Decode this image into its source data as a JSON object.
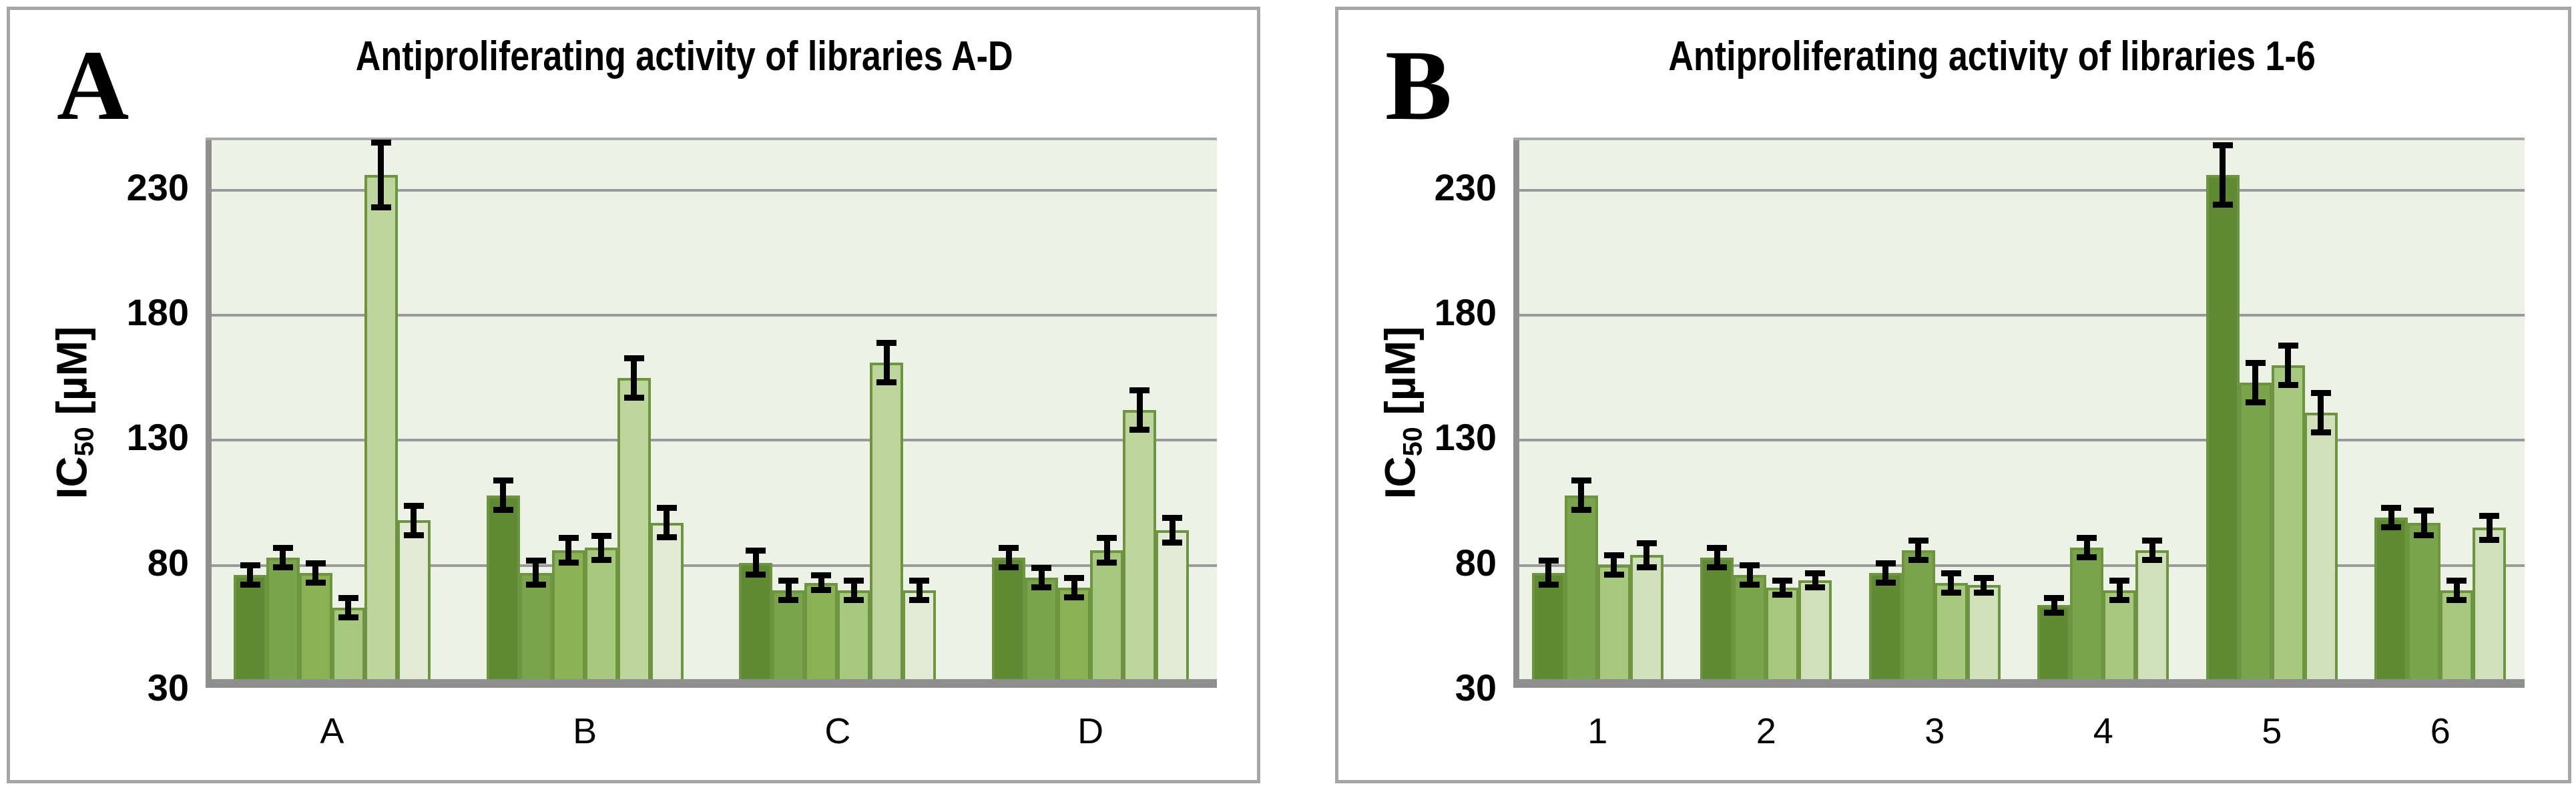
{
  "style": {
    "figure_bg": "#ffffff",
    "panel_bg": "#ffffff",
    "frame_color": "#a6a6a6",
    "plot_bg": "#edf2e6",
    "grid_color": "#9a9a9a",
    "axis_color": "#8f8f8f",
    "error_color": "#000000",
    "bar_border_color": "#6f9441",
    "text_color": "#000000"
  },
  "chart_data": [
    {
      "type": "bar",
      "panel_label": "A",
      "title": "Antiproliferating activity of libraries A-D",
      "ylabel_prefix": "IC",
      "ylabel_sub": "50",
      "ylabel_suffix": " [µM]",
      "ylim": [
        30,
        250
      ],
      "yticks": [
        230,
        180,
        130,
        80,
        30
      ],
      "grid": true,
      "legend": "none",
      "categories": [
        "A",
        "B",
        "C",
        "D"
      ],
      "series_colors": [
        "#5f8a33",
        "#7aa44b",
        "#8ab255",
        "#a6c87f",
        "#bdd59d",
        "#e3ebd6"
      ],
      "groups": [
        {
          "category": "A",
          "values": [
            75,
            82,
            76,
            62,
            235,
            97
          ],
          "errors": [
            4,
            4,
            4,
            4,
            13,
            6
          ]
        },
        {
          "category": "B",
          "values": [
            107,
            76,
            85,
            86,
            154,
            96
          ],
          "errors": [
            6,
            5,
            5,
            5,
            8,
            6
          ]
        },
        {
          "category": "C",
          "values": [
            80,
            69,
            72,
            69,
            160,
            69
          ],
          "errors": [
            5,
            4,
            3,
            4,
            8,
            4
          ]
        },
        {
          "category": "D",
          "values": [
            82,
            74,
            70,
            85,
            141,
            93
          ],
          "errors": [
            4,
            4,
            4,
            5,
            8,
            5
          ]
        }
      ]
    },
    {
      "type": "bar",
      "panel_label": "B",
      "title": "Antiproliferating activity of libraries 1-6",
      "ylabel_prefix": "IC",
      "ylabel_sub": "50",
      "ylabel_suffix": " [µM]",
      "ylim": [
        30,
        250
      ],
      "yticks": [
        230,
        180,
        130,
        80,
        30
      ],
      "grid": true,
      "legend": "none",
      "categories": [
        "1",
        "2",
        "3",
        "4",
        "5",
        "6"
      ],
      "series_colors": [
        "#5f8a33",
        "#7aa44b",
        "#a6c87f",
        "#cfe0ba"
      ],
      "groups": [
        {
          "category": "1",
          "values": [
            76,
            107,
            79,
            83
          ],
          "errors": [
            5,
            6,
            4,
            5
          ]
        },
        {
          "category": "2",
          "values": [
            82,
            75,
            70,
            73
          ],
          "errors": [
            4,
            4,
            3,
            3
          ]
        },
        {
          "category": "3",
          "values": [
            76,
            85,
            72,
            71
          ],
          "errors": [
            4,
            4,
            4,
            3
          ]
        },
        {
          "category": "4",
          "values": [
            63,
            86,
            69,
            85
          ],
          "errors": [
            3,
            4,
            4,
            4
          ]
        },
        {
          "category": "5",
          "values": [
            235,
            152,
            159,
            140
          ],
          "errors": [
            12,
            8,
            8,
            8
          ]
        },
        {
          "category": "6",
          "values": [
            98,
            96,
            69,
            94
          ],
          "errors": [
            4,
            5,
            4,
            5
          ]
        }
      ]
    }
  ]
}
